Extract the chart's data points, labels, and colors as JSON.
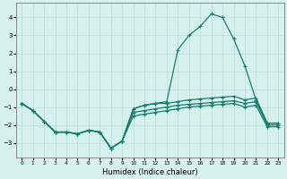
{
  "xlabel": "Humidex (Indice chaleur)",
  "background_color": "#d6f0ee",
  "grid_color": "#b8dbd8",
  "line_color": "#1a7a6e",
  "x_values": [
    0,
    1,
    2,
    3,
    4,
    5,
    6,
    7,
    8,
    9,
    10,
    11,
    12,
    13,
    14,
    15,
    16,
    17,
    18,
    19,
    20,
    21,
    22,
    23
  ],
  "y_main": [
    -0.8,
    -1.2,
    -1.8,
    -2.4,
    -2.4,
    -2.5,
    -2.3,
    -2.4,
    -3.3,
    -2.9,
    -1.1,
    -0.9,
    -0.8,
    -0.7,
    2.2,
    3.0,
    3.5,
    4.2,
    4.0,
    2.8,
    1.3,
    -0.6,
    -1.9,
    -1.9
  ],
  "y_mid": [
    -0.8,
    -1.2,
    -1.8,
    -2.4,
    -2.4,
    -2.5,
    -2.3,
    -2.4,
    -3.3,
    -2.9,
    -1.1,
    -0.9,
    -0.8,
    -0.8,
    -0.7,
    -0.6,
    -0.55,
    -0.5,
    -0.45,
    -0.4,
    -0.6,
    -0.5,
    -1.9,
    -1.9
  ],
  "y_low": [
    -0.8,
    -1.2,
    -1.8,
    -2.4,
    -2.4,
    -2.5,
    -2.3,
    -2.4,
    -3.3,
    -2.9,
    -1.3,
    -1.2,
    -1.1,
    -1.0,
    -0.9,
    -0.85,
    -0.8,
    -0.75,
    -0.7,
    -0.65,
    -0.8,
    -0.7,
    -2.0,
    -2.0
  ],
  "y_upper": [
    -0.8,
    -1.2,
    -1.8,
    -2.4,
    -2.4,
    -2.5,
    -2.3,
    -2.4,
    -3.3,
    -2.9,
    -1.5,
    -1.4,
    -1.3,
    -1.2,
    -1.1,
    -1.0,
    -0.95,
    -0.9,
    -0.85,
    -0.8,
    -1.0,
    -0.9,
    -2.1,
    -2.1
  ],
  "ylim": [
    -3.8,
    4.8
  ],
  "xlim": [
    -0.5,
    23.5
  ],
  "yticks": [
    -3,
    -2,
    -1,
    0,
    1,
    2,
    3,
    4
  ],
  "xticks": [
    0,
    1,
    2,
    3,
    4,
    5,
    6,
    7,
    8,
    9,
    10,
    11,
    12,
    13,
    14,
    15,
    16,
    17,
    18,
    19,
    20,
    21,
    22,
    23
  ]
}
